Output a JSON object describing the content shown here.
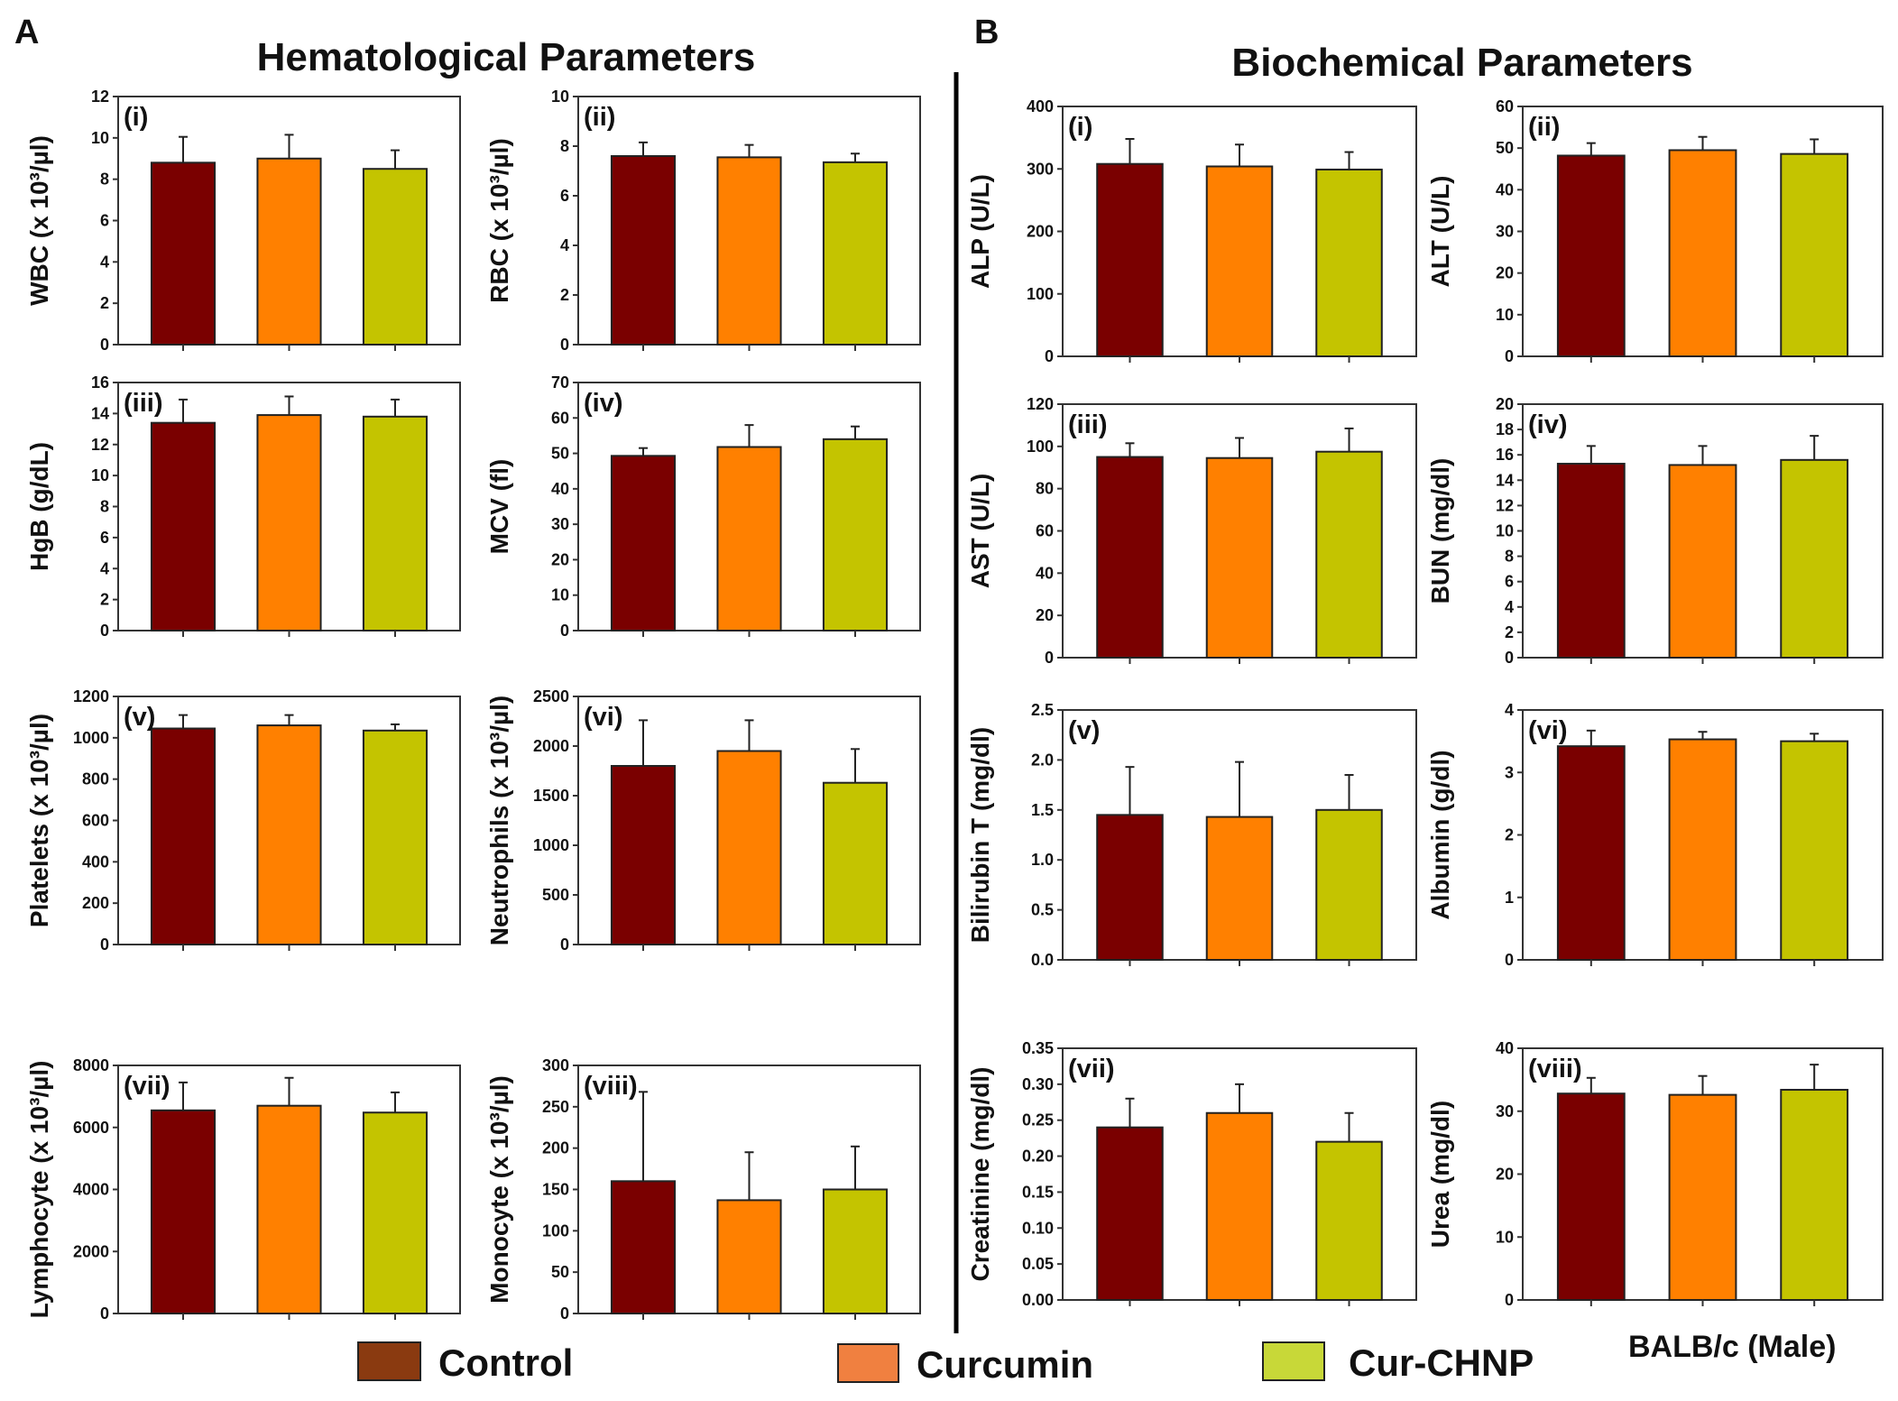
{
  "sections": [
    {
      "letter": "A",
      "title": "Hematological Parameters"
    },
    {
      "letter": "B",
      "title": "Biochemical Parameters"
    }
  ],
  "legend": {
    "items": [
      {
        "label": "Control",
        "color": "#8a3a10"
      },
      {
        "label": "Curcumin",
        "color": "#f08040"
      },
      {
        "label": "Cur-CHNP",
        "color": "#c8d838"
      }
    ],
    "note": "BALB/c (Male)"
  },
  "bar_colors": [
    "#7a0000",
    "#ff8000",
    "#c4c400"
  ],
  "chart_data": [
    {
      "type": "bar",
      "section": "A",
      "panel": "(i)",
      "ylabel": "WBC (x 10³/µl)",
      "categories": [
        "Control",
        "Curcumin",
        "Cur-CHNP"
      ],
      "values": [
        8.8,
        9.0,
        8.5
      ],
      "errors": [
        1.25,
        1.15,
        0.9
      ],
      "ylim": [
        0,
        12
      ],
      "yticks": [
        "0",
        "2",
        "4",
        "6",
        "8",
        "10",
        "12"
      ]
    },
    {
      "type": "bar",
      "section": "A",
      "panel": "(ii)",
      "ylabel": "RBC (x 10³/µl)",
      "categories": [
        "Control",
        "Curcumin",
        "Cur-CHNP"
      ],
      "values": [
        7.6,
        7.55,
        7.35
      ],
      "errors": [
        0.55,
        0.5,
        0.35
      ],
      "ylim": [
        0,
        10
      ],
      "yticks": [
        "0",
        "2",
        "4",
        "6",
        "8",
        "10"
      ]
    },
    {
      "type": "bar",
      "section": "A",
      "panel": "(iii)",
      "ylabel": "HgB (g/dL)",
      "categories": [
        "Control",
        "Curcumin",
        "Cur-CHNP"
      ],
      "values": [
        13.4,
        13.9,
        13.8
      ],
      "errors": [
        1.5,
        1.2,
        1.1
      ],
      "ylim": [
        0,
        16
      ],
      "yticks": [
        "0",
        "2",
        "4",
        "6",
        "8",
        "10",
        "12",
        "14",
        "16"
      ]
    },
    {
      "type": "bar",
      "section": "A",
      "panel": "(iv)",
      "ylabel": "MCV (fl)",
      "categories": [
        "Control",
        "Curcumin",
        "Cur-CHNP"
      ],
      "values": [
        49.3,
        51.8,
        54
      ],
      "errors": [
        2.2,
        6.2,
        3.6
      ],
      "ylim": [
        0,
        70
      ],
      "yticks": [
        "0",
        "10",
        "20",
        "30",
        "40",
        "50",
        "60",
        "70"
      ]
    },
    {
      "type": "bar",
      "section": "A",
      "panel": "(v)",
      "ylabel": "Platelets (x 10³/µl)",
      "categories": [
        "Control",
        "Curcumin",
        "Cur-CHNP"
      ],
      "values": [
        1045,
        1060,
        1035
      ],
      "errors": [
        65,
        50,
        30
      ],
      "ylim": [
        0,
        1200
      ],
      "yticks": [
        "0",
        "200",
        "400",
        "600",
        "800",
        "1000",
        "1200"
      ]
    },
    {
      "type": "bar",
      "section": "A",
      "panel": "(vi)",
      "ylabel": "Neutrophils (x 10³/µl)",
      "categories": [
        "Control",
        "Curcumin",
        "Cur-CHNP"
      ],
      "values": [
        1800,
        1950,
        1630
      ],
      "errors": [
        460,
        310,
        340
      ],
      "ylim": [
        0,
        2500
      ],
      "yticks": [
        "0",
        "500",
        "1000",
        "1500",
        "2000",
        "2500"
      ]
    },
    {
      "type": "bar",
      "section": "A",
      "panel": "(vii)",
      "ylabel": "Lymphocyte (x 10³/µl)",
      "categories": [
        "Control",
        "Curcumin",
        "Cur-CHNP"
      ],
      "values": [
        6550,
        6700,
        6480
      ],
      "errors": [
        900,
        900,
        650
      ],
      "ylim": [
        0,
        8000
      ],
      "yticks": [
        "0",
        "2000",
        "4000",
        "6000",
        "8000"
      ]
    },
    {
      "type": "bar",
      "section": "A",
      "panel": "(viii)",
      "ylabel": "Monocyte (x 10³/µl)",
      "categories": [
        "Control",
        "Curcumin",
        "Cur-CHNP"
      ],
      "values": [
        160,
        137,
        150
      ],
      "errors": [
        108,
        58,
        52
      ],
      "ylim": [
        0,
        300
      ],
      "yticks": [
        "0",
        "50",
        "100",
        "150",
        "200",
        "250",
        "300"
      ]
    },
    {
      "type": "bar",
      "section": "B",
      "panel": "(i)",
      "ylabel": "ALP (U/L)",
      "categories": [
        "Control",
        "Curcumin",
        "Cur-CHNP"
      ],
      "values": [
        308,
        304,
        299
      ],
      "errors": [
        40,
        35,
        28
      ],
      "ylim": [
        0,
        400
      ],
      "yticks": [
        "0",
        "100",
        "200",
        "300",
        "400"
      ]
    },
    {
      "type": "bar",
      "section": "B",
      "panel": "(ii)",
      "ylabel": "ALT (U/L)",
      "categories": [
        "Control",
        "Curcumin",
        "Cur-CHNP"
      ],
      "values": [
        48.2,
        49.5,
        48.6
      ],
      "errors": [
        3,
        3.2,
        3.5
      ],
      "ylim": [
        0,
        60
      ],
      "yticks": [
        "0",
        "10",
        "20",
        "30",
        "40",
        "50",
        "60"
      ]
    },
    {
      "type": "bar",
      "section": "B",
      "panel": "(iii)",
      "ylabel": "AST (U/L)",
      "categories": [
        "Control",
        "Curcumin",
        "Cur-CHNP"
      ],
      "values": [
        95,
        94.5,
        97.5
      ],
      "errors": [
        6.5,
        9.5,
        11
      ],
      "ylim": [
        0,
        120
      ],
      "yticks": [
        "0",
        "20",
        "40",
        "60",
        "80",
        "100",
        "120"
      ]
    },
    {
      "type": "bar",
      "section": "B",
      "panel": "(iv)",
      "ylabel": "BUN (mg/dl)",
      "categories": [
        "Control",
        "Curcumin",
        "Cur-CHNP"
      ],
      "values": [
        15.3,
        15.2,
        15.6
      ],
      "errors": [
        1.4,
        1.5,
        1.9
      ],
      "ylim": [
        0,
        20
      ],
      "yticks": [
        "0",
        "2",
        "4",
        "6",
        "8",
        "10",
        "12",
        "14",
        "16",
        "18",
        "20"
      ]
    },
    {
      "type": "bar",
      "section": "B",
      "panel": "(v)",
      "ylabel": "Bilirubin T (mg/dl)",
      "categories": [
        "Control",
        "Curcumin",
        "Cur-CHNP"
      ],
      "values": [
        1.45,
        1.43,
        1.5
      ],
      "errors": [
        0.48,
        0.55,
        0.35
      ],
      "ylim": [
        0,
        2.5
      ],
      "yticks": [
        "0.0",
        "0.5",
        "1.0",
        "1.5",
        "2.0",
        "2.5"
      ]
    },
    {
      "type": "bar",
      "section": "B",
      "panel": "(vi)",
      "ylabel": "Albumin (g/dl)",
      "categories": [
        "Control",
        "Curcumin",
        "Cur-CHNP"
      ],
      "values": [
        3.42,
        3.53,
        3.5
      ],
      "errors": [
        0.25,
        0.12,
        0.12
      ],
      "ylim": [
        0,
        4
      ],
      "yticks": [
        "0",
        "1",
        "2",
        "3",
        "4"
      ]
    },
    {
      "type": "bar",
      "section": "B",
      "panel": "(vii)",
      "ylabel": "Creatinine (mg/dl)",
      "categories": [
        "Control",
        "Curcumin",
        "Cur-CHNP"
      ],
      "values": [
        0.24,
        0.26,
        0.22
      ],
      "errors": [
        0.04,
        0.04,
        0.04
      ],
      "ylim": [
        0,
        0.35
      ],
      "yticks": [
        "0.00",
        "0.05",
        "0.10",
        "0.15",
        "0.20",
        "0.25",
        "0.30",
        "0.35"
      ]
    },
    {
      "type": "bar",
      "section": "B",
      "panel": "(viii)",
      "ylabel": "Urea (mg/dl)",
      "categories": [
        "Control",
        "Curcumin",
        "Cur-CHNP"
      ],
      "values": [
        32.8,
        32.6,
        33.4
      ],
      "errors": [
        2.5,
        3,
        4
      ],
      "ylim": [
        0,
        40
      ],
      "yticks": [
        "0",
        "10",
        "20",
        "30",
        "40"
      ]
    }
  ]
}
